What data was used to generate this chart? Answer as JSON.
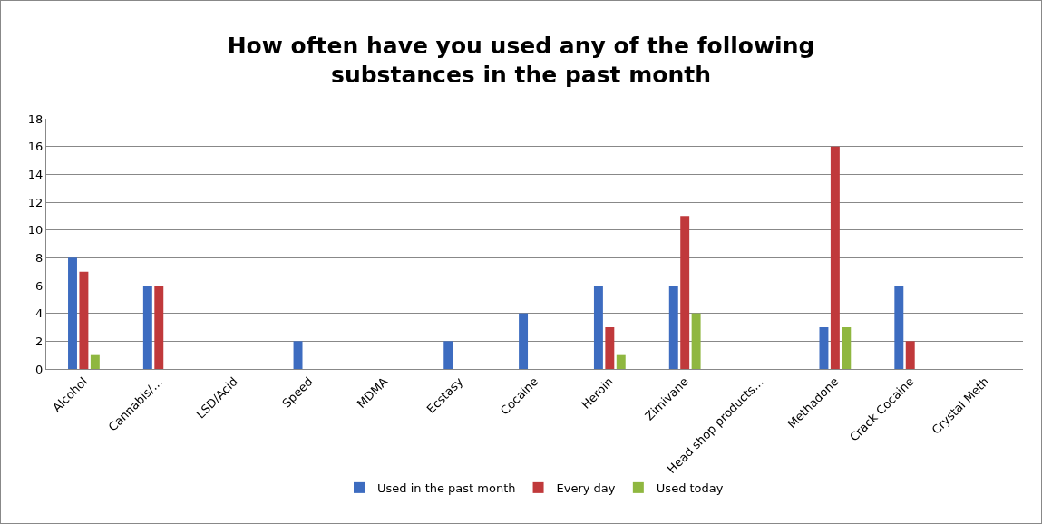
{
  "chart_data": {
    "type": "bar",
    "title": "How often have you used any of the following substances in the past month",
    "categories": [
      "Alcohol",
      "Cannabis/…",
      "LSD/Acid",
      "Speed",
      "MDMA",
      "Ecstasy",
      "Cocaine",
      "Heroin",
      "Zimivane",
      "Head shop products…",
      "Methadone",
      "Crack Cocaine",
      "Crystal Meth"
    ],
    "series": [
      {
        "name": "Used in the past month",
        "color": "#3d6cc0",
        "values": [
          8,
          6,
          0,
          2,
          0,
          2,
          4,
          6,
          6,
          0,
          3,
          6,
          0
        ]
      },
      {
        "name": "Every day",
        "color": "#c0393b",
        "values": [
          7,
          6,
          0,
          0,
          0,
          0,
          0,
          3,
          11,
          0,
          16,
          2,
          0
        ]
      },
      {
        "name": "Used today",
        "color": "#8fb740",
        "values": [
          1,
          0,
          0,
          0,
          0,
          0,
          0,
          1,
          4,
          0,
          3,
          0,
          0
        ]
      }
    ],
    "ylim": [
      0,
      18
    ],
    "yticks": [
      0,
      2,
      4,
      6,
      8,
      10,
      12,
      14,
      16,
      18
    ],
    "grid": "y",
    "legend": "bottom"
  }
}
